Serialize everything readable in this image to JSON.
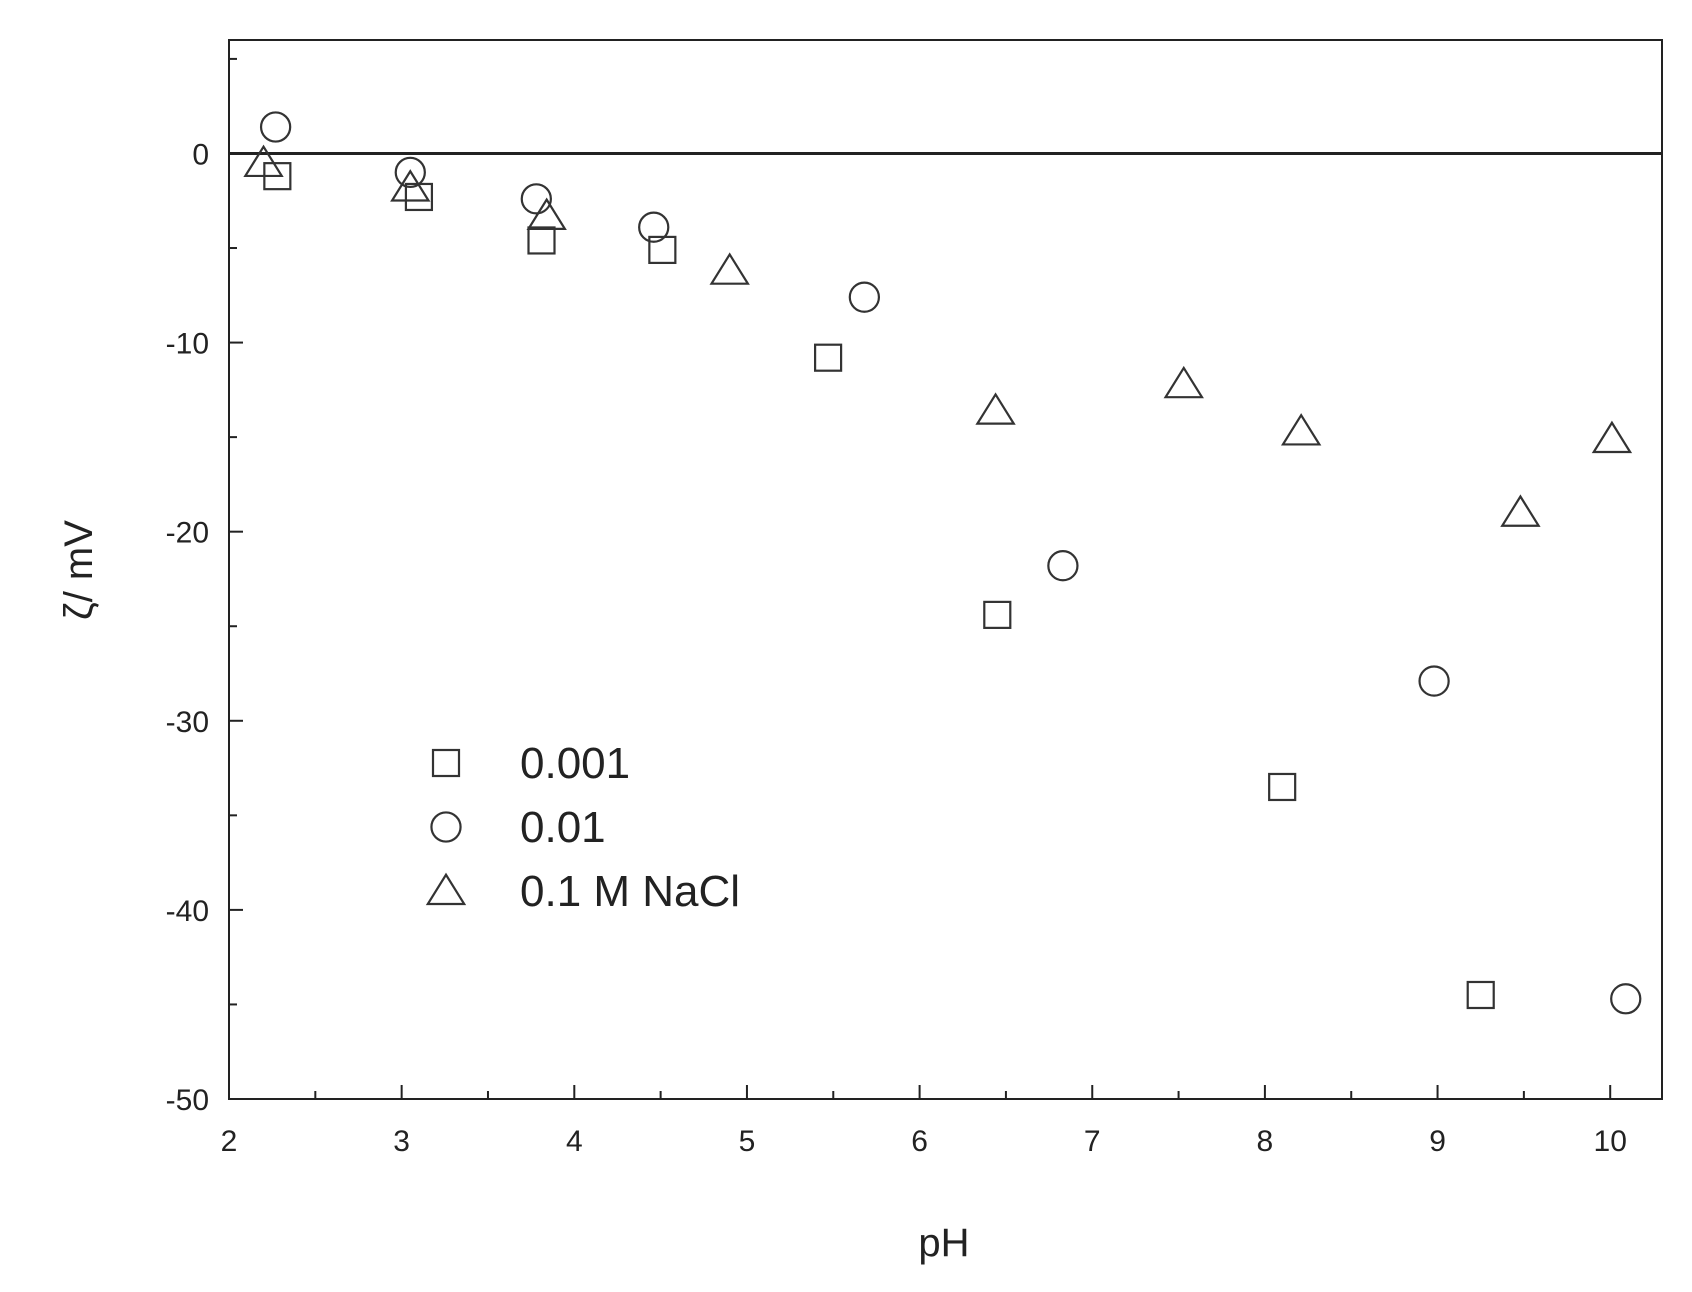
{
  "chart_data": {
    "type": "scatter",
    "xlabel": "pH",
    "ylabel": "ζ/ mV",
    "xlim": [
      2,
      10.3
    ],
    "ylim": [
      -50,
      6
    ],
    "x_ticks": [
      2,
      3,
      4,
      5,
      6,
      7,
      8,
      9,
      10
    ],
    "y_ticks": [
      0,
      -10,
      -20,
      -30,
      -40,
      -50
    ],
    "zero_line": 0,
    "grid": false,
    "legend_position": "lower-left",
    "colors": {
      "axis": "#222222",
      "marker": "#333333"
    },
    "series": [
      {
        "name": "0.001",
        "marker": "square",
        "points": [
          {
            "x": 2.28,
            "y": -1.2
          },
          {
            "x": 3.1,
            "y": -2.3
          },
          {
            "x": 3.81,
            "y": -4.6
          },
          {
            "x": 4.51,
            "y": -5.1
          },
          {
            "x": 5.47,
            "y": -10.8
          },
          {
            "x": 6.45,
            "y": -24.4
          },
          {
            "x": 8.1,
            "y": -33.5
          },
          {
            "x": 9.25,
            "y": -44.5
          }
        ]
      },
      {
        "name": "0.01",
        "marker": "circle",
        "points": [
          {
            "x": 2.27,
            "y": 1.4
          },
          {
            "x": 3.05,
            "y": -1.0
          },
          {
            "x": 3.78,
            "y": -2.4
          },
          {
            "x": 4.46,
            "y": -3.9
          },
          {
            "x": 5.68,
            "y": -7.6
          },
          {
            "x": 6.83,
            "y": -21.8
          },
          {
            "x": 8.98,
            "y": -27.9
          },
          {
            "x": 10.09,
            "y": -44.7
          }
        ]
      },
      {
        "name": "0.1 M NaCl",
        "marker": "triangle",
        "points": [
          {
            "x": 2.2,
            "y": -0.5
          },
          {
            "x": 3.05,
            "y": -1.8
          },
          {
            "x": 3.84,
            "y": -3.3
          },
          {
            "x": 4.9,
            "y": -6.2
          },
          {
            "x": 6.44,
            "y": -13.6
          },
          {
            "x": 7.53,
            "y": -12.2
          },
          {
            "x": 8.21,
            "y": -14.7
          },
          {
            "x": 9.48,
            "y": -19.0
          },
          {
            "x": 10.01,
            "y": -15.1
          }
        ]
      }
    ]
  }
}
